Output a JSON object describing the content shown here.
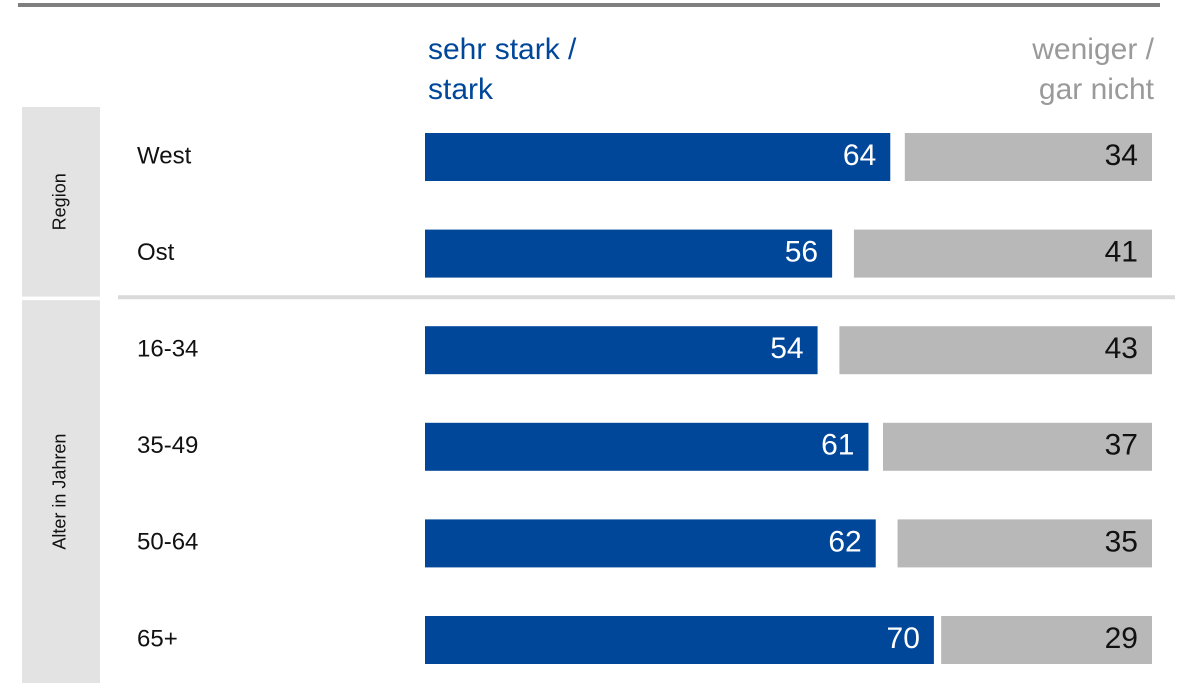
{
  "chart_data": {
    "type": "bar",
    "groups": [
      {
        "name": "Region",
        "categories": [
          "West",
          "Ost"
        ]
      },
      {
        "name": "Alter in Jahren",
        "categories": [
          "16-34",
          "35-49",
          "50-64",
          "65+"
        ]
      }
    ],
    "series": [
      {
        "name": "sehr stark / stark",
        "color": "#00479a",
        "values": [
          64,
          56,
          54,
          61,
          62,
          70
        ]
      },
      {
        "name": "weniger / gar nicht",
        "color": "#b8b8b8",
        "values": [
          34,
          41,
          43,
          37,
          35,
          29
        ]
      }
    ],
    "xlim": [
      0,
      100
    ]
  }
}
